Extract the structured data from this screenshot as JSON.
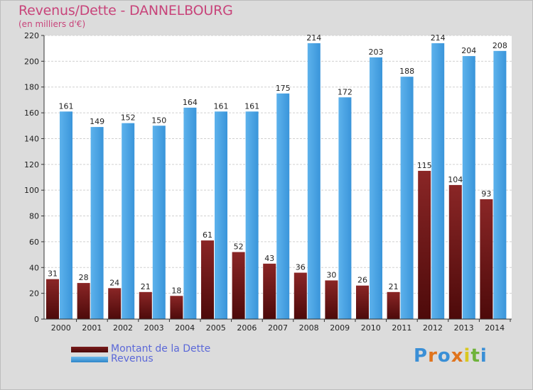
{
  "title": "Revenus/Dette - DANNELBOURG",
  "subtitle": "(en milliers d'€)",
  "colors": {
    "debt": "#6e1818",
    "revenue": "#4aa3e2",
    "title": "#c8447a",
    "legend_text": "#5b68d8"
  },
  "legend": {
    "debt_label": "Montant de la Dette",
    "revenue_label": "Revenus"
  },
  "logo": {
    "letters": [
      "P",
      "r",
      "o",
      "x",
      "i",
      "t",
      "i"
    ],
    "colors": [
      "#3a8fd6",
      "#e0741d",
      "#3a8fd6",
      "#e0741d",
      "#d9c820",
      "#6fb33b",
      "#3a8fd6"
    ]
  },
  "chart_data": {
    "type": "bar",
    "categories": [
      "2000",
      "2001",
      "2002",
      "2003",
      "2004",
      "2005",
      "2006",
      "2007",
      "2008",
      "2009",
      "2010",
      "2011",
      "2012",
      "2013",
      "2014"
    ],
    "series": [
      {
        "name": "Montant de la Dette",
        "values": [
          31,
          28,
          24,
          21,
          18,
          61,
          52,
          43,
          36,
          30,
          26,
          21,
          115,
          104,
          93
        ]
      },
      {
        "name": "Revenus",
        "values": [
          161,
          149,
          152,
          150,
          164,
          161,
          161,
          175,
          214,
          172,
          203,
          188,
          214,
          204,
          208
        ]
      }
    ],
    "ylim": [
      0,
      220
    ],
    "yticks": [
      0,
      20,
      40,
      60,
      80,
      100,
      120,
      140,
      160,
      180,
      200,
      220
    ],
    "grid": true,
    "legend_position": "bottom-left"
  }
}
